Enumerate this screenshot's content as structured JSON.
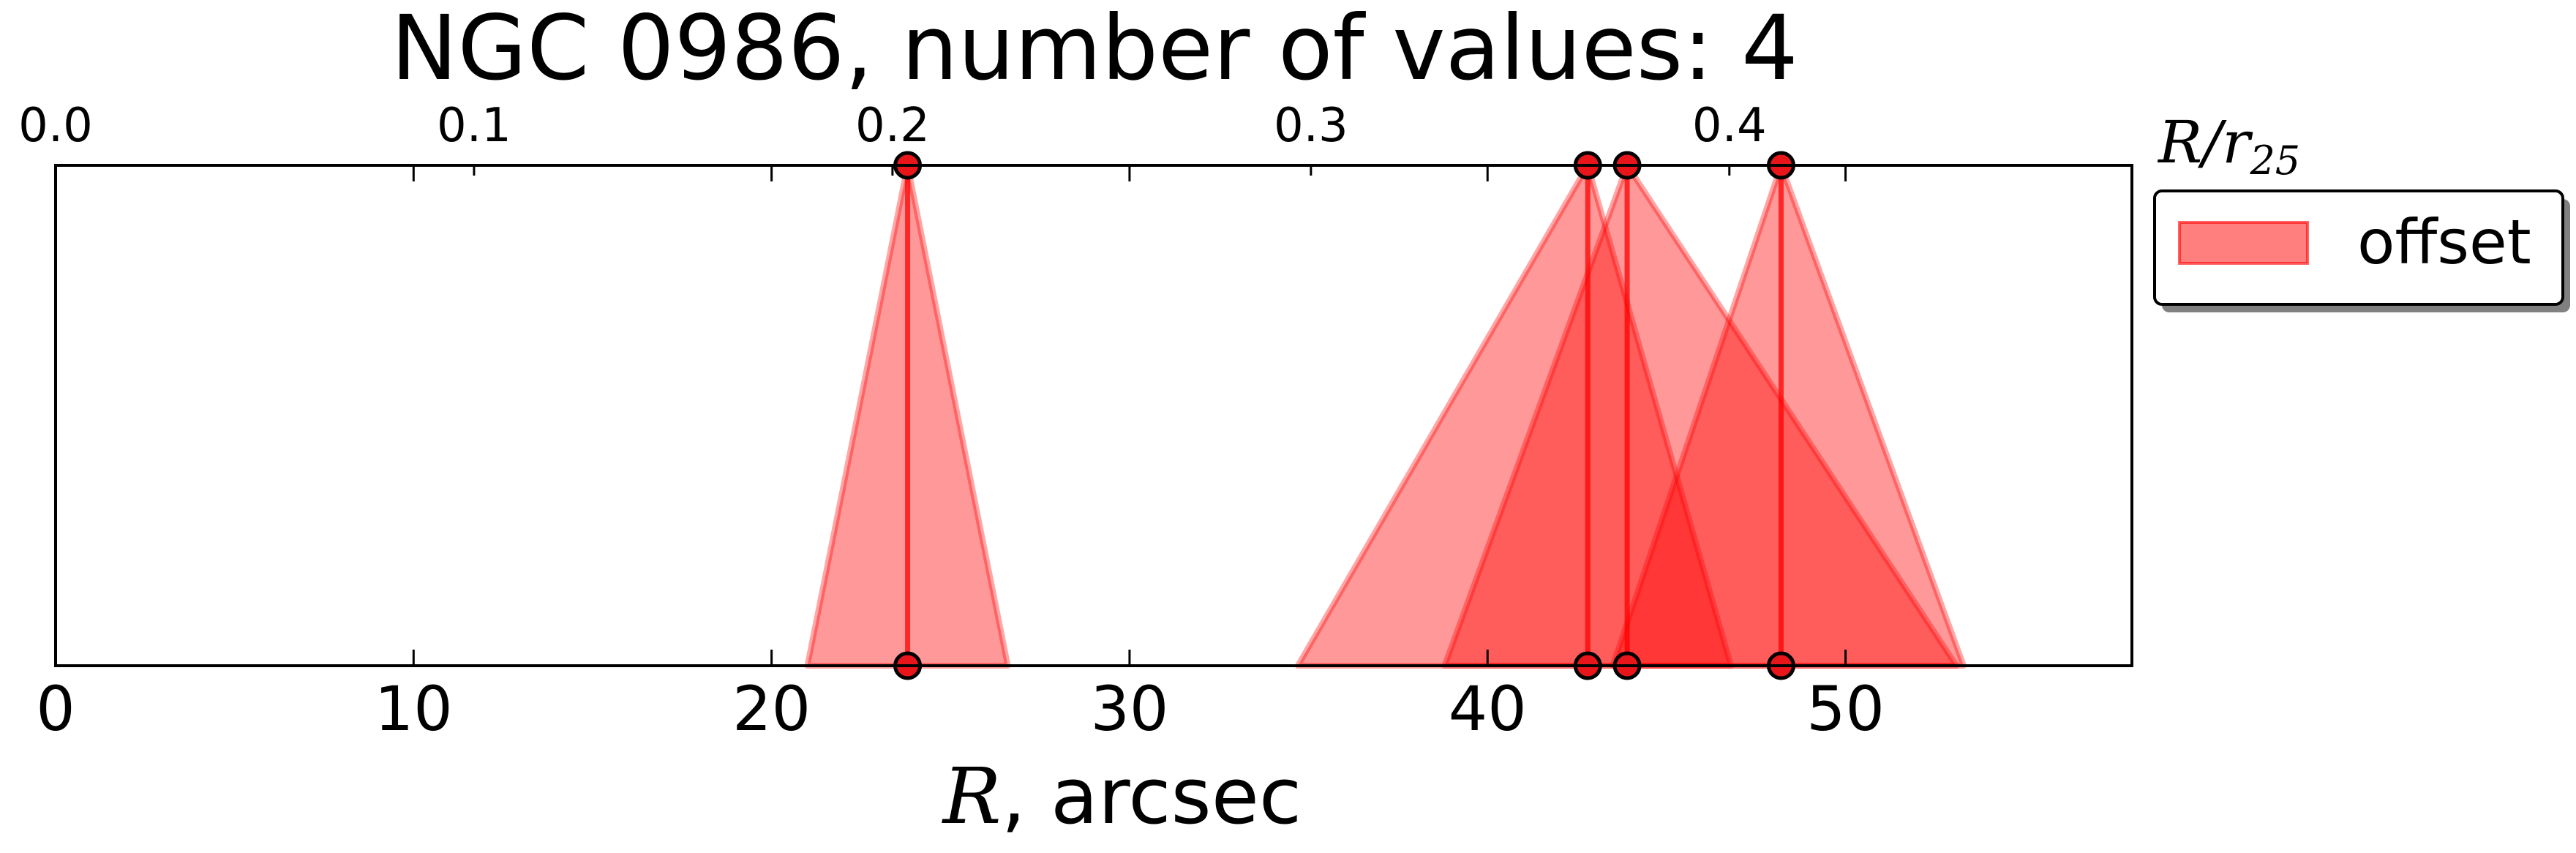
{
  "chart_data": {
    "type": "scatter",
    "title": "NGC 0986, number of values: 4",
    "xlabel_symbol": "R",
    "xlabel_rest": ", arcsec",
    "x2label_symbol": "R/r",
    "x2label_sub": "25",
    "xlim": [
      0,
      58
    ],
    "xticks": [
      0,
      10,
      20,
      30,
      40,
      50
    ],
    "xticklabels": [
      "0",
      "10",
      "20",
      "30",
      "40",
      "50"
    ],
    "x2lim": [
      0.0,
      0.4962
    ],
    "x2ticks": [
      0.0,
      0.1,
      0.2,
      0.3,
      0.4
    ],
    "x2ticklabels": [
      "0.0",
      "0.1",
      "0.2",
      "0.3",
      "0.4"
    ],
    "series": [
      {
        "name": "offset",
        "color": "#ff0000",
        "values": [
          {
            "x": 23.8,
            "lo": 21.0,
            "hi": 26.6
          },
          {
            "x": 42.8,
            "lo": 34.7,
            "hi": 46.8
          },
          {
            "x": 43.9,
            "lo": 38.8,
            "hi": 53.1
          },
          {
            "x": 48.2,
            "lo": 43.5,
            "hi": 53.3
          }
        ]
      }
    ],
    "legend": {
      "position": "right",
      "label": "offset"
    },
    "grid": false
  }
}
